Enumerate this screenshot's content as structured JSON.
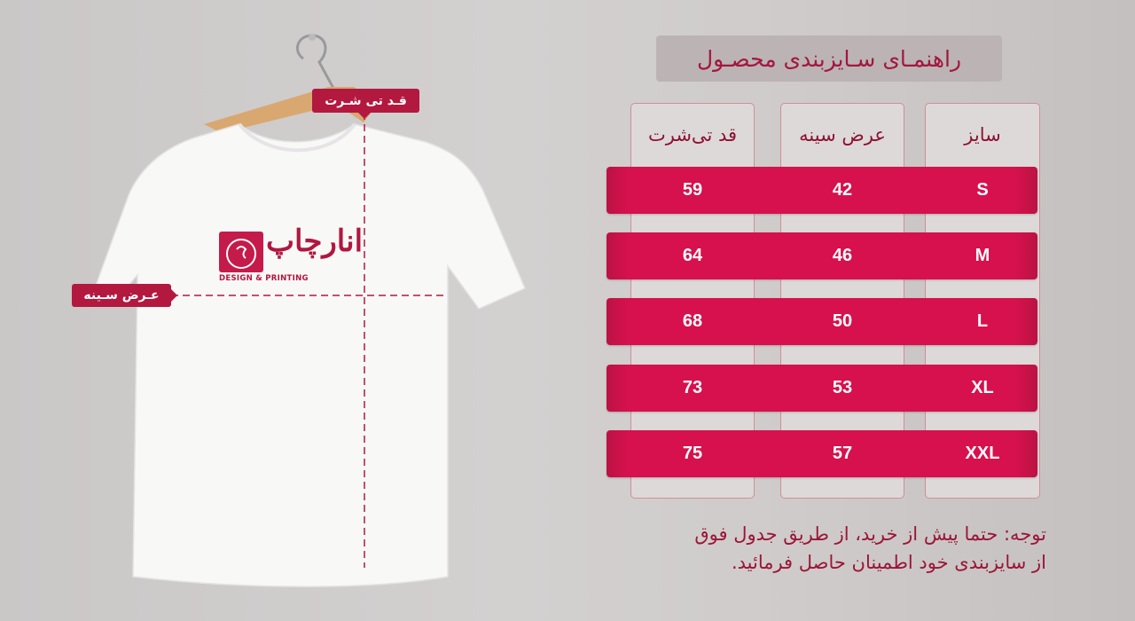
{
  "title": "راهنمـای سـایزبندی محصـول",
  "shirt": {
    "length_label": "قـد تی شـرت",
    "chest_label": "عـرض سـینه",
    "logo_text": "انارچاپ",
    "logo_subtext": "DESIGN & PRINTING"
  },
  "table": {
    "headers": [
      "سایز",
      "عرض سینه",
      "قد تی‌شرت"
    ],
    "rows": [
      {
        "size": "S",
        "chest": "42",
        "length": "59"
      },
      {
        "size": "M",
        "chest": "46",
        "length": "64"
      },
      {
        "size": "L",
        "chest": "50",
        "length": "68"
      },
      {
        "size": "XL",
        "chest": "53",
        "length": "73"
      },
      {
        "size": "XXL",
        "chest": "57",
        "length": "75"
      }
    ]
  },
  "note": {
    "line1": "توجه: حتما پیش از خرید، از طریق جدول فوق",
    "line2": "از سایزبندی خود اطمینان حاصل فرمائید."
  },
  "colors": {
    "accent": "#d6114d",
    "label_red": "#b3183f",
    "title_text": "#a3173f"
  }
}
